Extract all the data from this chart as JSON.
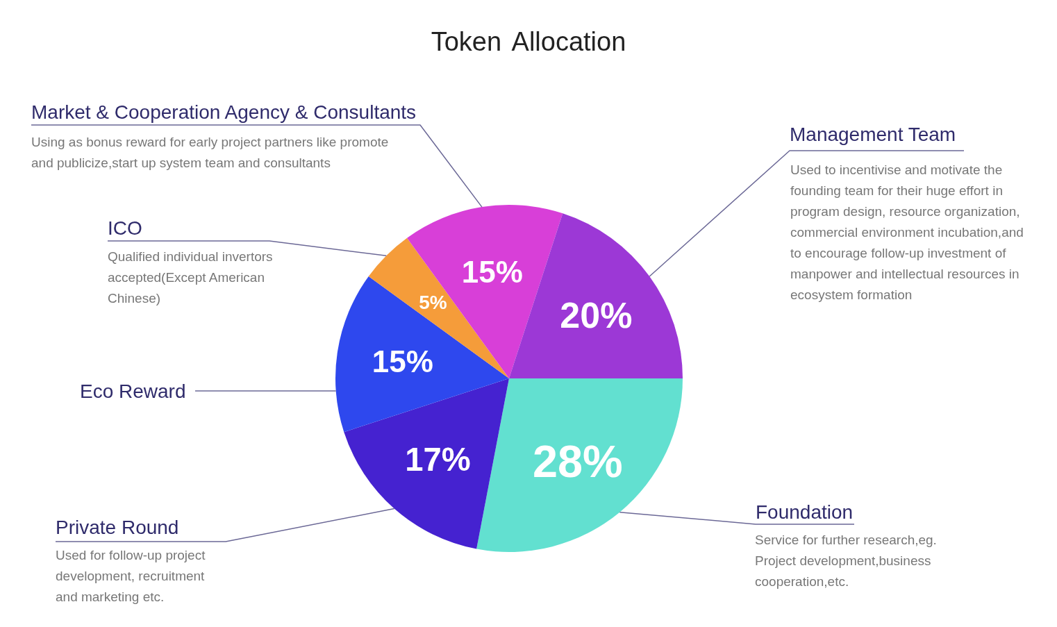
{
  "chart_data": {
    "type": "pie",
    "title": "Token Allocation",
    "categories": [
      "Foundation",
      "Private Round",
      "Eco Reward",
      "ICO",
      "Market & Cooperation Agency & Consultants",
      "Management Team"
    ],
    "values": [
      28,
      17,
      15,
      5,
      15,
      20
    ],
    "colors": [
      "#62e0d0",
      "#4522d0",
      "#2e48ee",
      "#f59c3a",
      "#d83fd8",
      "#9c38d6"
    ],
    "value_labels": [
      "28%",
      "17%",
      "15%",
      "5%",
      "15%",
      "20%"
    ],
    "annotations": [
      "Using as bonus reward for early project partners like promote and publicize,start up system team and consultants",
      "Used to incentivise and motivate the founding team for their huge effort in program design, resource organization, commercial environment incubation,and to encourage follow-up investment of manpower and intellectual resources in ecosystem formation",
      "Qualified individual invertors accepted(Except American Chinese)",
      "Used for follow-up project development, recruitment and marketing etc.",
      "Service for further research,eg. Project development,business cooperation,etc."
    ]
  }
}
